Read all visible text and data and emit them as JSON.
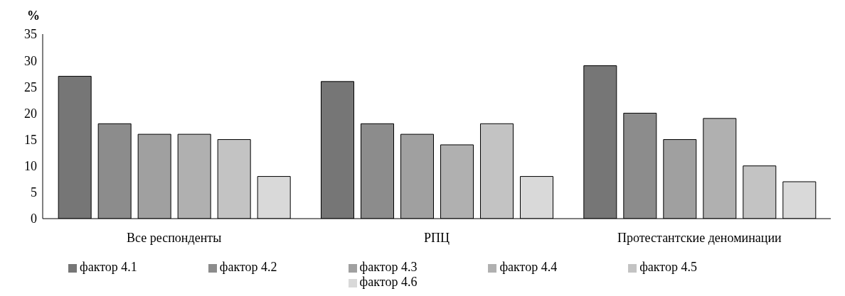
{
  "chart_data": {
    "type": "bar",
    "ylabel": "%",
    "categories": [
      "Все респонденты",
      "РПЦ",
      "Протестантские деноминации"
    ],
    "series": [
      {
        "name": "фактор 4.1",
        "color": "#767676",
        "values": [
          27,
          26,
          29
        ]
      },
      {
        "name": "фактор 4.2",
        "color": "#8c8c8c",
        "values": [
          18,
          18,
          20
        ]
      },
      {
        "name": "фактор 4.3",
        "color": "#a0a0a0",
        "values": [
          16,
          16,
          15
        ]
      },
      {
        "name": "фактор 4.4",
        "color": "#b0b0b0",
        "values": [
          16,
          14,
          19
        ]
      },
      {
        "name": "фактор 4.5",
        "color": "#c3c3c3",
        "values": [
          15,
          18,
          10
        ]
      },
      {
        "name": "фактор 4.6",
        "color": "#d9d9d9",
        "values": [
          8,
          8,
          7
        ]
      }
    ],
    "ylim": [
      0,
      35
    ],
    "yticks": [
      0,
      5,
      10,
      15,
      20,
      25,
      30,
      35
    ],
    "grid": false,
    "legend": "bottom"
  }
}
